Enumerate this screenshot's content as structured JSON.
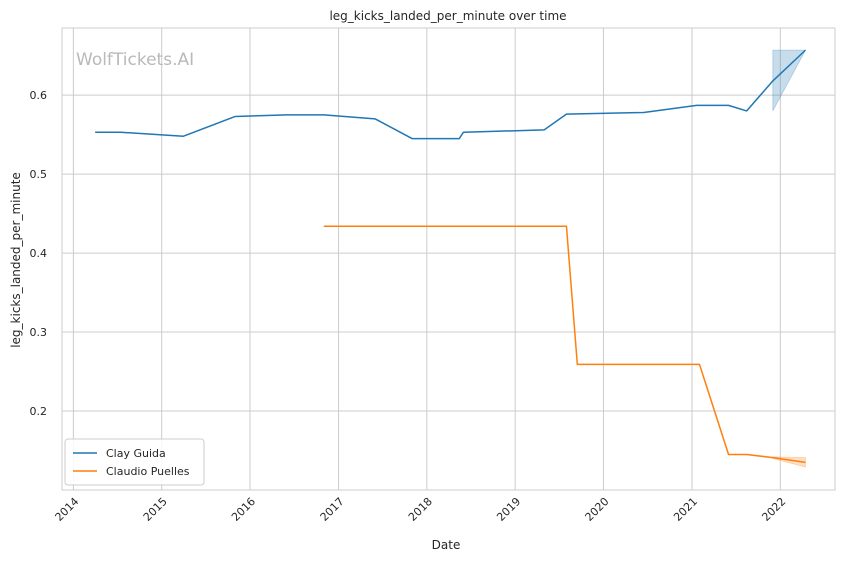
{
  "chart_data": {
    "type": "line",
    "title": "leg_kicks_landed_per_minute over time",
    "xlabel": "Date",
    "ylabel": "leg_kicks_landed_per_minute",
    "watermark": "WolfTickets.AI",
    "x_ticks": [
      "2014",
      "2015",
      "2016",
      "2017",
      "2018",
      "2019",
      "2020",
      "2021",
      "2022"
    ],
    "y_ticks": [
      0.2,
      0.3,
      0.4,
      0.5,
      0.6
    ],
    "xlim": [
      "2013-11-15",
      "2022-08-15"
    ],
    "ylim": [
      0.1,
      0.685
    ],
    "grid": true,
    "legend_position": "lower-left",
    "series": [
      {
        "name": "Clay Guida",
        "color": "#1f77b4",
        "points": [
          [
            "2014-04-01",
            0.553
          ],
          [
            "2014-07-15",
            0.553
          ],
          [
            "2015-04-01",
            0.548
          ],
          [
            "2015-11-01",
            0.573
          ],
          [
            "2016-06-01",
            0.575
          ],
          [
            "2016-11-01",
            0.575
          ],
          [
            "2017-06-01",
            0.57
          ],
          [
            "2017-11-01",
            0.545
          ],
          [
            "2018-05-15",
            0.545
          ],
          [
            "2018-06-01",
            0.553
          ],
          [
            "2019-05-01",
            0.556
          ],
          [
            "2019-08-01",
            0.576
          ],
          [
            "2020-06-15",
            0.578
          ],
          [
            "2021-01-20",
            0.587
          ],
          [
            "2021-06-01",
            0.587
          ],
          [
            "2021-08-15",
            0.58
          ],
          [
            "2021-12-01",
            0.618
          ],
          [
            "2022-04-15",
            0.657
          ]
        ],
        "band": [
          [
            "2021-12-01",
            0.58,
            0.657
          ],
          [
            "2022-04-15",
            0.657,
            0.657
          ]
        ]
      },
      {
        "name": "Claudio Puelles",
        "color": "#ff7f0e",
        "points": [
          [
            "2016-11-01",
            0.434
          ],
          [
            "2019-08-01",
            0.434
          ],
          [
            "2019-09-15",
            0.259
          ],
          [
            "2021-02-01",
            0.259
          ],
          [
            "2021-06-01",
            0.145
          ],
          [
            "2021-08-15",
            0.145
          ],
          [
            "2021-12-01",
            0.141
          ],
          [
            "2022-04-15",
            0.135
          ]
        ],
        "band": [
          [
            "2021-12-01",
            0.14,
            0.142
          ],
          [
            "2022-04-15",
            0.129,
            0.141
          ]
        ]
      }
    ]
  }
}
